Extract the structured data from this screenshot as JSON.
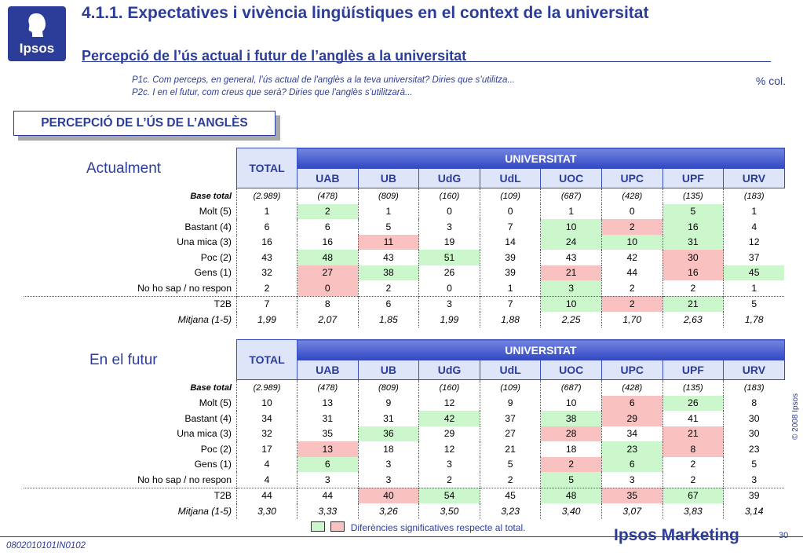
{
  "logo": {
    "text": "Ipsos"
  },
  "title": {
    "line1": "4.1.1. Expectatives i vivència lingüístiques en el context de la universitat",
    "line2": "Percepció de l’ús actual i futur de l’anglès a la universitat"
  },
  "questions": [
    "P1c. Com perceps, en general, l’ús actual de l'anglès a la teva universitat? Diries que s’utilitza...",
    "P2c. I en el futur, com creus que serà? Diries que l'anglès s’utilitzarà..."
  ],
  "pct_col": "% col.",
  "section_title": "PERCEPCIÓ DE L’ÚS DE L’ANGLÈS",
  "headers": {
    "total": "TOTAL",
    "group": "UNIVERSITAT",
    "columns": [
      "UAB",
      "UB",
      "UdG",
      "UdL",
      "UOC",
      "UPC",
      "UPF",
      "URV"
    ]
  },
  "tables": [
    {
      "label": "Actualment",
      "rows": [
        {
          "label": "Base total",
          "kind": "base",
          "cells": [
            "(2.989)",
            "(478)",
            "(809)",
            "(160)",
            "(109)",
            "(687)",
            "(428)",
            "(135)",
            "(183)"
          ],
          "hl": [
            "",
            "",
            "",
            "",
            "",
            "",
            "",
            "",
            ""
          ]
        },
        {
          "label": "Molt (5)",
          "cells": [
            "1",
            "2",
            "1",
            "0",
            "0",
            "1",
            "0",
            "5",
            "1"
          ],
          "hl": [
            "",
            "green",
            "",
            "",
            "",
            "",
            "",
            "green",
            ""
          ]
        },
        {
          "label": "Bastant (4)",
          "cells": [
            "6",
            "6",
            "5",
            "3",
            "7",
            "10",
            "2",
            "16",
            "4"
          ],
          "hl": [
            "",
            "",
            "",
            "",
            "",
            "green",
            "red",
            "green",
            ""
          ]
        },
        {
          "label": "Una mica (3)",
          "cells": [
            "16",
            "16",
            "11",
            "19",
            "14",
            "24",
            "10",
            "31",
            "12"
          ],
          "hl": [
            "",
            "",
            "red",
            "",
            "",
            "green",
            "green",
            "green",
            ""
          ]
        },
        {
          "label": "Poc (2)",
          "cells": [
            "43",
            "48",
            "43",
            "51",
            "39",
            "43",
            "42",
            "30",
            "37"
          ],
          "hl": [
            "",
            "green",
            "",
            "green",
            "",
            "",
            "",
            "red",
            ""
          ]
        },
        {
          "label": "Gens (1)",
          "cells": [
            "32",
            "27",
            "38",
            "26",
            "39",
            "21",
            "44",
            "16",
            "45"
          ],
          "hl": [
            "",
            "red",
            "green",
            "",
            "",
            "red",
            "",
            "red",
            "green"
          ]
        },
        {
          "label": "No ho sap / no respon",
          "cells": [
            "2",
            "0",
            "2",
            "0",
            "1",
            "3",
            "2",
            "2",
            "1"
          ],
          "hl": [
            "",
            "red",
            "",
            "",
            "",
            "green",
            "",
            "",
            ""
          ]
        },
        {
          "label": "T2B",
          "kind": "t2b",
          "cells": [
            "7",
            "8",
            "6",
            "3",
            "7",
            "10",
            "2",
            "21",
            "5"
          ],
          "hl": [
            "",
            "",
            "",
            "",
            "",
            "green",
            "red",
            "green",
            ""
          ]
        },
        {
          "label": "Mitjana (1-5)",
          "kind": "mit",
          "cells": [
            "1,99",
            "2,07",
            "1,85",
            "1,99",
            "1,88",
            "2,25",
            "1,70",
            "2,63",
            "1,78"
          ],
          "hl": [
            "",
            "",
            "",
            "",
            "",
            "",
            "",
            "",
            ""
          ]
        }
      ]
    },
    {
      "label": "En el futur",
      "rows": [
        {
          "label": "Base total",
          "kind": "base",
          "cells": [
            "(2.989)",
            "(478)",
            "(809)",
            "(160)",
            "(109)",
            "(687)",
            "(428)",
            "(135)",
            "(183)"
          ],
          "hl": [
            "",
            "",
            "",
            "",
            "",
            "",
            "",
            "",
            ""
          ]
        },
        {
          "label": "Molt (5)",
          "cells": [
            "10",
            "13",
            "9",
            "12",
            "9",
            "10",
            "6",
            "26",
            "8"
          ],
          "hl": [
            "",
            "",
            "",
            "",
            "",
            "",
            "red",
            "green",
            ""
          ]
        },
        {
          "label": "Bastant (4)",
          "cells": [
            "34",
            "31",
            "31",
            "42",
            "37",
            "38",
            "29",
            "41",
            "30"
          ],
          "hl": [
            "",
            "",
            "",
            "green",
            "",
            "green",
            "red",
            "",
            ""
          ]
        },
        {
          "label": "Una mica (3)",
          "cells": [
            "32",
            "35",
            "36",
            "29",
            "27",
            "28",
            "34",
            "21",
            "30"
          ],
          "hl": [
            "",
            "",
            "green",
            "",
            "",
            "red",
            "",
            "red",
            ""
          ]
        },
        {
          "label": "Poc (2)",
          "cells": [
            "17",
            "13",
            "18",
            "12",
            "21",
            "18",
            "23",
            "8",
            "23"
          ],
          "hl": [
            "",
            "red",
            "",
            "",
            "",
            "",
            "green",
            "red",
            ""
          ]
        },
        {
          "label": "Gens (1)",
          "cells": [
            "4",
            "6",
            "3",
            "3",
            "5",
            "2",
            "6",
            "2",
            "5"
          ],
          "hl": [
            "",
            "green",
            "",
            "",
            "",
            "red",
            "green",
            "",
            ""
          ]
        },
        {
          "label": "No ho sap / no respon",
          "cells": [
            "4",
            "3",
            "3",
            "2",
            "2",
            "5",
            "3",
            "2",
            "3"
          ],
          "hl": [
            "",
            "",
            "",
            "",
            "",
            "green",
            "",
            "",
            ""
          ]
        },
        {
          "label": "T2B",
          "kind": "t2b",
          "cells": [
            "44",
            "44",
            "40",
            "54",
            "45",
            "48",
            "35",
            "67",
            "39"
          ],
          "hl": [
            "",
            "",
            "red",
            "green",
            "",
            "green",
            "red",
            "green",
            ""
          ]
        },
        {
          "label": "Mitjana (1-5)",
          "kind": "mit",
          "cells": [
            "3,30",
            "3,33",
            "3,26",
            "3,50",
            "3,23",
            "3,40",
            "3,07",
            "3,83",
            "3,14"
          ],
          "hl": [
            "",
            "",
            "",
            "",
            "",
            "",
            "",
            "",
            ""
          ]
        }
      ]
    }
  ],
  "legend": {
    "text": "Diferències significatives respecte al total.",
    "colors": {
      "green": "#ccf7cc",
      "red": "#fac1c1"
    }
  },
  "footer": {
    "code": "0802010101IN0102",
    "brand": "Ipsos Marketing",
    "page": "30",
    "copyright": "© 2008 Ipsos"
  },
  "colors": {
    "brand": "#2c3d99",
    "header": "#3148c4",
    "header_light": "#dfe5f9"
  }
}
